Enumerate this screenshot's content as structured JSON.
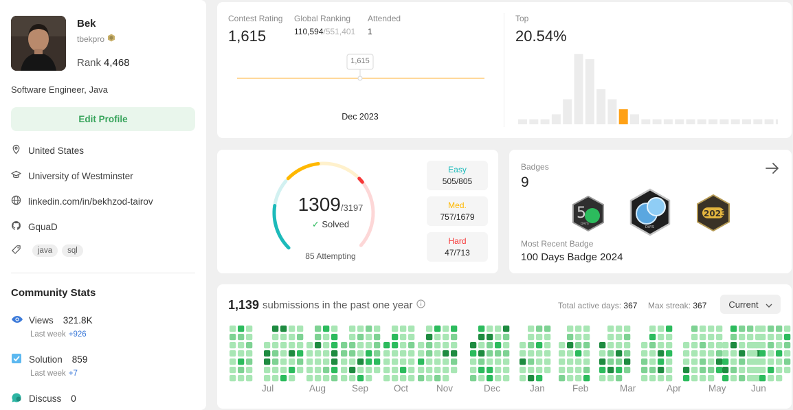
{
  "profile": {
    "name": "Bek",
    "username": "tbekpro",
    "rank_label": "Rank",
    "rank_value": "4,468",
    "bio": "Software Engineer, Java",
    "edit_button": "Edit Profile",
    "location": "United States",
    "school": "University of Westminster",
    "linkedin": "linkedin.com/in/bekhzod-tairov",
    "github": "GquaD",
    "skills": [
      "java",
      "sql"
    ]
  },
  "community": {
    "title": "Community Stats",
    "views_label": "Views",
    "views_value": "321.8K",
    "views_week_label": "Last week",
    "views_week_delta": "+926",
    "solution_label": "Solution",
    "solution_value": "859",
    "solution_week_label": "Last week",
    "solution_week_delta": "+7",
    "discuss_label": "Discuss",
    "discuss_value": "0"
  },
  "contest": {
    "rating_label": "Contest Rating",
    "rating_value": "1,615",
    "global_label": "Global Ranking",
    "global_value": "110,594",
    "global_total": "/551,401",
    "attended_label": "Attended",
    "attended_value": "1",
    "tooltip": "1,615",
    "date": "Dec 2023",
    "top_label": "Top",
    "top_value": "20.54%",
    "histogram_levels": [
      1,
      1,
      1,
      2,
      5,
      14,
      13,
      7,
      5,
      3,
      2,
      1,
      1,
      1,
      1,
      1,
      1,
      1,
      1,
      1,
      1,
      1,
      1,
      1
    ],
    "histogram_highlight_index": 9
  },
  "solved": {
    "count": "1309",
    "total": "/3197",
    "solved_label": "Solved",
    "attempting": "85 Attempting",
    "easy_label": "Easy",
    "easy_value": "505/805",
    "medium_label": "Med.",
    "medium_value": "757/1679",
    "hard_label": "Hard",
    "hard_value": "47/713",
    "easy_fraction": 0.627,
    "medium_fraction": 0.451,
    "hard_fraction": 0.066,
    "colors": {
      "easy": "#1cbaba",
      "medium": "#ffb800",
      "hard": "#f63737"
    }
  },
  "badges": {
    "label": "Badges",
    "count": "9",
    "recent_label": "Most Recent Badge",
    "recent_name": "100 Days Badge 2024",
    "badge_icons": [
      "50-days-badge-icon",
      "100-days-badge-icon",
      "2023-badge-icon"
    ],
    "badge_text_50": "DAYS",
    "badge_text_100": "DAYS",
    "badge_text_year": "2023"
  },
  "submissions": {
    "count": "1,139",
    "text": "submissions in the past one year",
    "active_label": "Total active days:",
    "active_value": "367",
    "streak_label": "Max streak:",
    "streak_value": "367",
    "dropdown": "Current",
    "months": [
      "Jul",
      "Aug",
      "Sep",
      "Oct",
      "Nov",
      "Dec",
      "Jan",
      "Feb",
      "Mar",
      "Apr",
      "May",
      "Jun"
    ]
  }
}
